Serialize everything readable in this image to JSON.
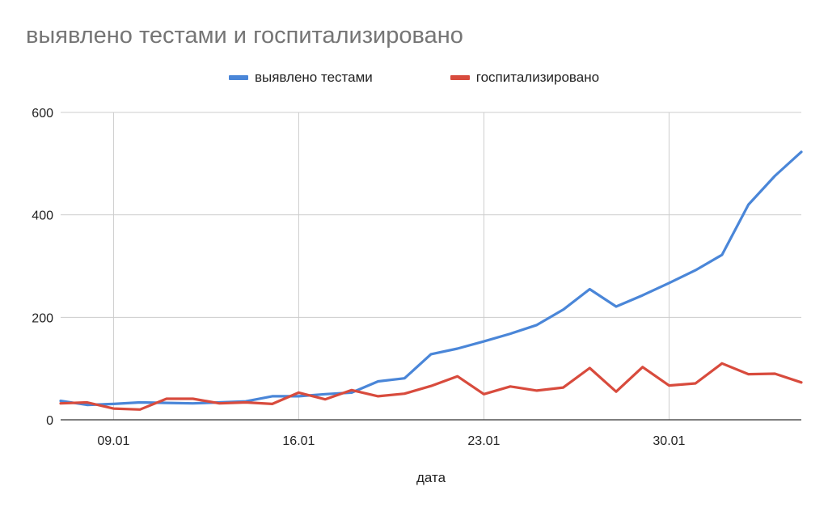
{
  "chart_data": {
    "type": "line",
    "title": "выявлено тестами и госпитализировано",
    "xlabel": "дата",
    "ylabel": "",
    "x": [
      "07.01",
      "08.01",
      "09.01",
      "10.01",
      "11.01",
      "12.01",
      "13.01",
      "14.01",
      "15.01",
      "16.01",
      "17.01",
      "18.01",
      "19.01",
      "20.01",
      "21.01",
      "22.01",
      "23.01",
      "24.01",
      "25.01",
      "26.01",
      "27.01",
      "28.01",
      "29.01",
      "30.01",
      "31.01",
      "01.02",
      "02.02",
      "03.02",
      "04.02"
    ],
    "x_tick_labels": [
      "09.01",
      "16.01",
      "23.01",
      "30.01"
    ],
    "ylim": [
      0,
      600
    ],
    "y_ticks": [
      0,
      200,
      400,
      600
    ],
    "grid": true,
    "legend_position": "top",
    "series": [
      {
        "name": "выявлено тестами",
        "color": "#4a86d8",
        "values": [
          37,
          29,
          31,
          34,
          33,
          32,
          34,
          36,
          46,
          46,
          50,
          53,
          75,
          81,
          128,
          139,
          153,
          168,
          185,
          215,
          255,
          221,
          243,
          267,
          292,
          322,
          420,
          476,
          523
        ]
      },
      {
        "name": "госпитализировано",
        "color": "#d84b3d",
        "values": [
          32,
          34,
          22,
          20,
          41,
          41,
          32,
          34,
          31,
          53,
          40,
          58,
          46,
          51,
          66,
          85,
          50,
          65,
          57,
          63,
          101,
          55,
          103,
          67,
          71,
          110,
          89,
          90,
          73
        ]
      }
    ]
  }
}
